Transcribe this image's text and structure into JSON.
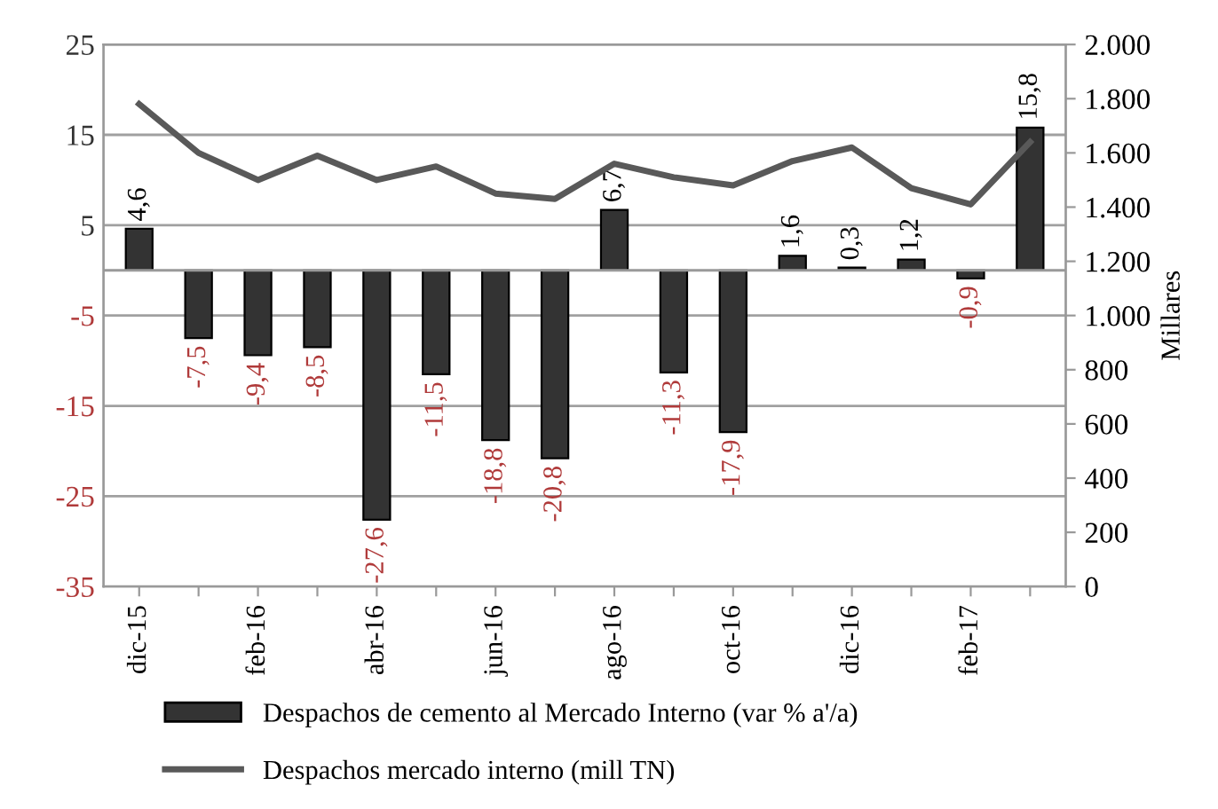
{
  "chart_data": {
    "type": "bar",
    "categories": [
      "dic-15",
      null,
      "feb-16",
      null,
      "abr-16",
      null,
      "jun-16",
      null,
      "ago-16",
      null,
      "oct-16",
      null,
      "dic-16",
      null,
      "feb-17",
      null
    ],
    "series": [
      {
        "name": "Despachos de cemento al Mercado Interno (var % a'/a)",
        "color": "#333333",
        "values": [
          4.6,
          -7.5,
          -9.4,
          -8.5,
          -27.6,
          -11.5,
          -18.8,
          -20.8,
          6.7,
          -11.3,
          -17.9,
          1.6,
          0.3,
          1.2,
          -0.9,
          15.8
        ],
        "value_labels": [
          "4,6",
          "-7,5",
          "-9,4",
          "-8,5",
          "-27,6",
          "-11,5",
          "-18,8",
          "-20,8",
          "6,7",
          "-11,3",
          "-17,9",
          "1,6",
          "0,3",
          "1,2",
          "-0,9",
          "15,8"
        ]
      },
      {
        "name": "Despachos mercado interno (mill TN)",
        "type": "line",
        "axis": "y2",
        "color": "#595959",
        "values": [
          1780,
          1600,
          1500,
          1590,
          1500,
          1550,
          1450,
          1430,
          1560,
          1510,
          1480,
          1570,
          1620,
          1470,
          1410,
          1640
        ]
      }
    ],
    "ylim": [
      -35,
      25
    ],
    "yticks": [
      -35,
      -25,
      -15,
      -5,
      5,
      15,
      25
    ],
    "y2lim": [
      0,
      2000
    ],
    "y2ticks": [
      {
        "value": 0,
        "label": "0"
      },
      {
        "value": 200,
        "label": "200"
      },
      {
        "value": 400,
        "label": "400"
      },
      {
        "value": 600,
        "label": "600"
      },
      {
        "value": 800,
        "label": "800"
      },
      {
        "value": 1000,
        "label": "1.000"
      },
      {
        "value": 1200,
        "label": "1.200"
      },
      {
        "value": 1400,
        "label": "1.400"
      },
      {
        "value": 1600,
        "label": "1.600"
      },
      {
        "value": 1800,
        "label": "1.800"
      },
      {
        "value": 2000,
        "label": "2.000"
      }
    ],
    "y2label": "Millares",
    "grid": "y",
    "legend": "bottom",
    "marker": "none",
    "line_style": "solid"
  }
}
